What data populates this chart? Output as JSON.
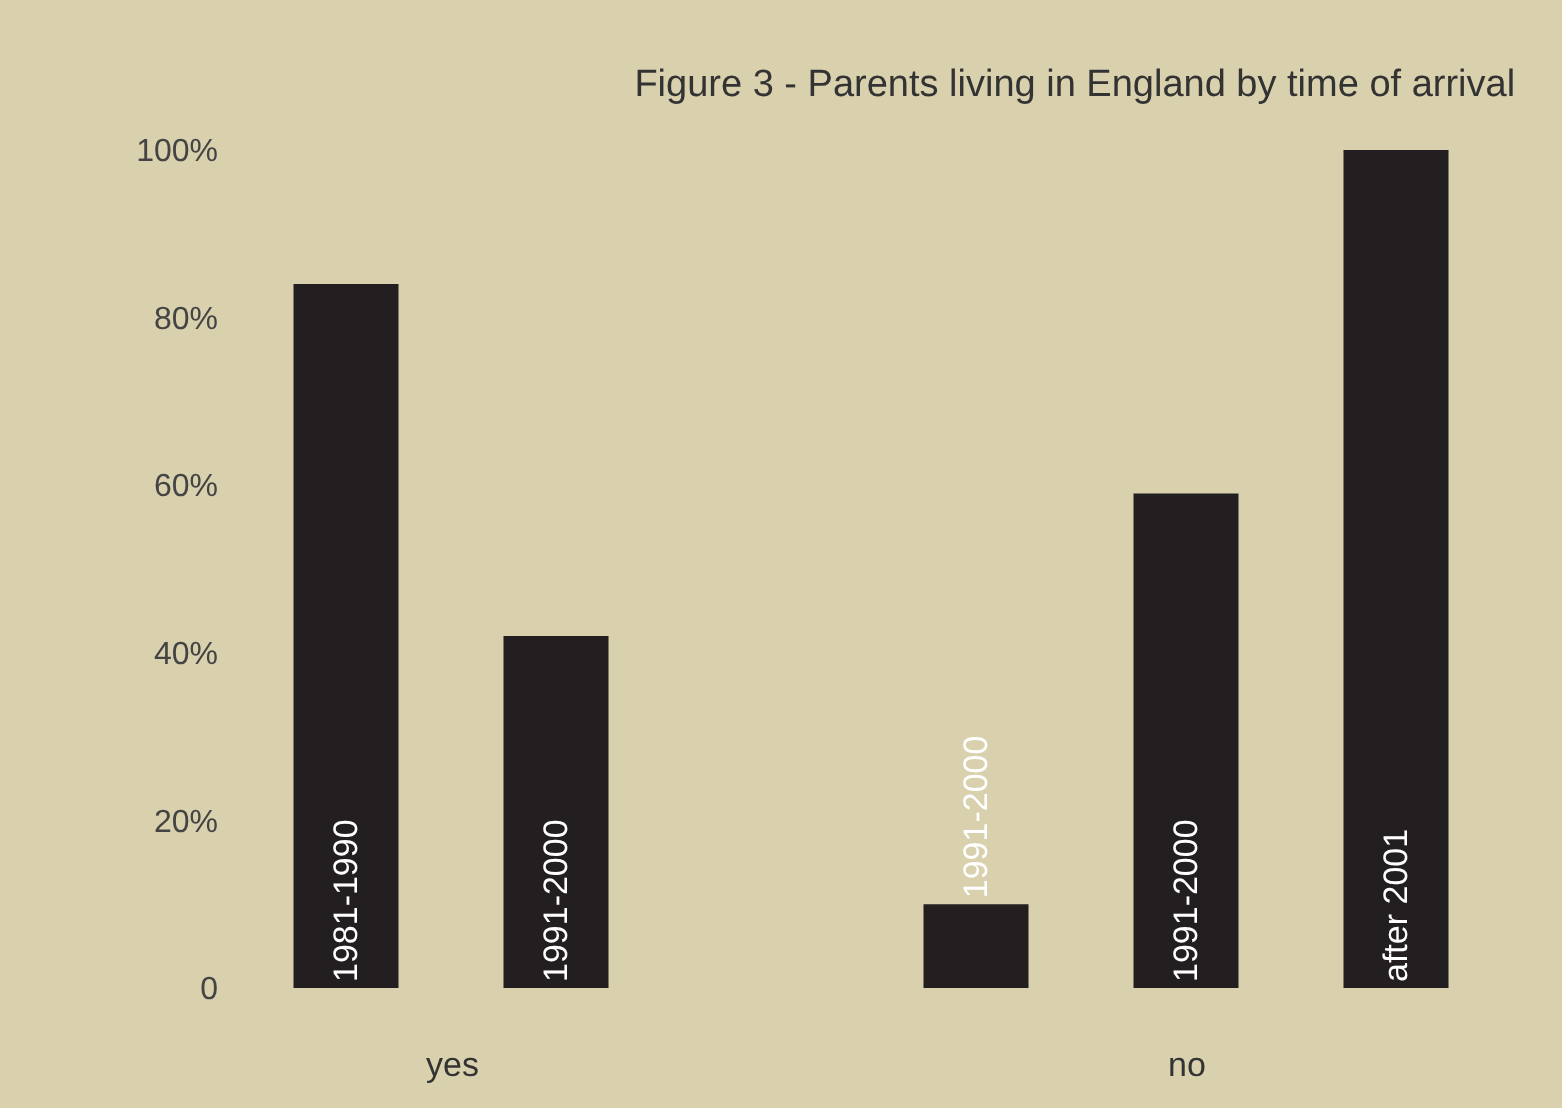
{
  "chart_data": {
    "type": "bar",
    "title": "Figure 3 - Parents living in England by time of arrival",
    "categories": [
      "1981-1990",
      "1991-2000",
      null,
      "1991-2000",
      "1991-2000",
      "after 2001"
    ],
    "values": [
      84,
      42,
      null,
      10,
      59,
      100
    ],
    "color": "#231f20",
    "ylim": [
      0,
      100
    ],
    "yticks": [
      {
        "value": 0,
        "label": "0"
      },
      {
        "value": 20,
        "label": "20%"
      },
      {
        "value": 40,
        "label": "40%"
      },
      {
        "value": 60,
        "label": "60%"
      },
      {
        "value": 80,
        "label": "80%"
      },
      {
        "value": 100,
        "label": "100%"
      }
    ],
    "annotations": [
      "yes",
      "no"
    ],
    "grid": false,
    "legend": false
  }
}
